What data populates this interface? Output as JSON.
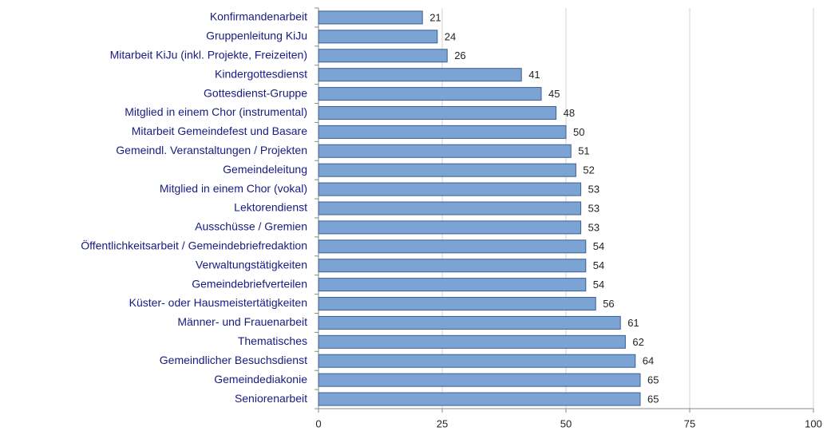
{
  "chart_data": {
    "type": "bar",
    "orientation": "horizontal",
    "categories": [
      "Konfirmandenarbeit",
      "Gruppenleitung KiJu",
      "Mitarbeit KiJu (inkl. Projekte, Freizeiten)",
      "Kindergottesdienst",
      "Gottesdienst-Gruppe",
      "Mitglied in einem Chor (instrumental)",
      "Mitarbeit Gemeindefest und Basare",
      "Gemeindl. Veranstaltungen / Projekten",
      "Gemeindeleitung",
      "Mitglied in einem Chor (vokal)",
      "Lektorendienst",
      "Ausschüsse / Gremien",
      "Öffentlichkeitsarbeit / Gemeindebriefredaktion",
      "Verwaltungstätigkeiten",
      "Gemeindebriefverteilen",
      "Küster- oder Hausmeistertätigkeiten",
      "Männer- und Frauenarbeit",
      "Thematisches",
      "Gemeindlicher Besuchsdienst",
      "Gemeindediakonie",
      "Seniorenarbeit"
    ],
    "values": [
      21,
      24,
      26,
      41,
      45,
      48,
      50,
      51,
      52,
      53,
      53,
      53,
      54,
      54,
      54,
      56,
      61,
      62,
      64,
      65,
      65
    ],
    "color": "#7ba3d4",
    "xlim": [
      0,
      100
    ],
    "xticks": [
      0,
      25,
      50,
      75,
      100
    ],
    "grid": true
  }
}
